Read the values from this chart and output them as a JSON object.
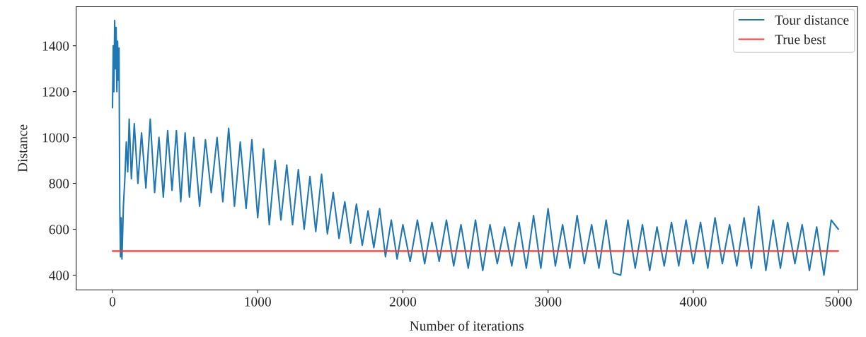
{
  "chart_data": {
    "type": "line",
    "xlabel": "Number of iterations",
    "ylabel": "Distance",
    "xlim": [
      -250,
      5130
    ],
    "ylim": [
      336,
      1570
    ],
    "xticks": [
      0,
      1000,
      2000,
      3000,
      4000,
      5000
    ],
    "yticks": [
      400,
      600,
      800,
      1000,
      1200,
      1400
    ],
    "legend": "top right",
    "grid": false,
    "series": [
      {
        "name": "Tour distance",
        "color": "#1f77b4",
        "x": [
          0,
          5,
          10,
          15,
          20,
          25,
          30,
          35,
          40,
          45,
          50,
          55,
          60,
          65,
          75,
          85,
          95,
          105,
          115,
          130,
          150,
          175,
          200,
          230,
          260,
          290,
          320,
          350,
          380,
          410,
          440,
          470,
          500,
          530,
          560,
          600,
          640,
          680,
          720,
          760,
          800,
          840,
          880,
          920,
          960,
          1000,
          1040,
          1080,
          1120,
          1160,
          1200,
          1240,
          1280,
          1320,
          1360,
          1400,
          1440,
          1480,
          1520,
          1560,
          1600,
          1640,
          1680,
          1720,
          1760,
          1800,
          1840,
          1880,
          1920,
          1960,
          2000,
          2050,
          2100,
          2150,
          2200,
          2250,
          2300,
          2350,
          2400,
          2450,
          2500,
          2550,
          2600,
          2650,
          2700,
          2750,
          2800,
          2850,
          2900,
          2950,
          3000,
          3050,
          3100,
          3150,
          3200,
          3250,
          3300,
          3350,
          3400,
          3450,
          3500,
          3550,
          3600,
          3650,
          3700,
          3750,
          3800,
          3850,
          3900,
          3950,
          4000,
          4050,
          4100,
          4150,
          4200,
          4250,
          4300,
          4350,
          4400,
          4450,
          4500,
          4550,
          4600,
          4650,
          4700,
          4750,
          4800,
          4850,
          4900,
          4950,
          4999
        ],
        "values": [
          1130,
          1400,
          1200,
          1510,
          1300,
          1480,
          1200,
          1420,
          1250,
          1390,
          700,
          480,
          650,
          470,
          700,
          820,
          980,
          850,
          1080,
          820,
          1060,
          800,
          1020,
          780,
          1080,
          760,
          1000,
          740,
          1030,
          770,
          1030,
          720,
          1020,
          740,
          1000,
          700,
          990,
          760,
          1000,
          720,
          1040,
          700,
          980,
          690,
          990,
          650,
          950,
          620,
          900,
          640,
          880,
          620,
          860,
          600,
          830,
          590,
          840,
          580,
          760,
          560,
          720,
          540,
          710,
          530,
          680,
          520,
          690,
          480,
          640,
          470,
          620,
          460,
          640,
          450,
          630,
          460,
          640,
          440,
          620,
          430,
          640,
          420,
          620,
          450,
          610,
          440,
          630,
          430,
          660,
          430,
          690,
          440,
          620,
          430,
          660,
          450,
          620,
          430,
          640,
          410,
          400,
          640,
          430,
          620,
          420,
          610,
          440,
          630,
          440,
          640,
          450,
          630,
          430,
          650,
          450,
          620,
          440,
          650,
          430,
          700,
          420,
          640,
          430,
          630,
          450,
          620,
          420,
          610,
          400,
          640,
          600
        ]
      },
      {
        "name": "True best",
        "color": "#f03c3c",
        "x": [
          0,
          4999
        ],
        "values": [
          505,
          505
        ]
      }
    ]
  }
}
